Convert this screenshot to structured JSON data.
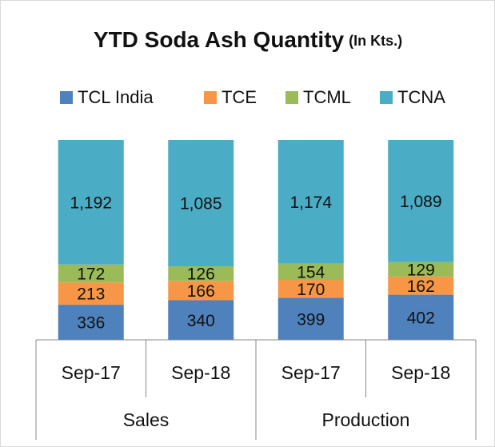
{
  "chart_data": {
    "type": "bar",
    "stacking": "percent",
    "title": "YTD Soda Ash Quantity",
    "subtitle": "(In Kts.)",
    "categories": [
      "Sep-17",
      "Sep-18",
      "Sep-17",
      "Sep-18"
    ],
    "groups": [
      {
        "name": "Sales",
        "size": 2
      },
      {
        "name": "Production",
        "size": 2
      }
    ],
    "series": [
      {
        "name": "TCL India",
        "color": "#4f81bd",
        "values": [
          336,
          340,
          399,
          402
        ]
      },
      {
        "name": "TCE",
        "color": "#f79646",
        "values": [
          213,
          166,
          170,
          162
        ]
      },
      {
        "name": "TCML",
        "color": "#9bbb59",
        "values": [
          172,
          126,
          154,
          129
        ]
      },
      {
        "name": "TCNA",
        "color": "#4bacc6",
        "values": [
          1192,
          1085,
          1174,
          1089
        ],
        "value_labels": [
          "1,192",
          "1,085",
          "1,174",
          "1,089"
        ]
      }
    ],
    "legend": "top"
  }
}
